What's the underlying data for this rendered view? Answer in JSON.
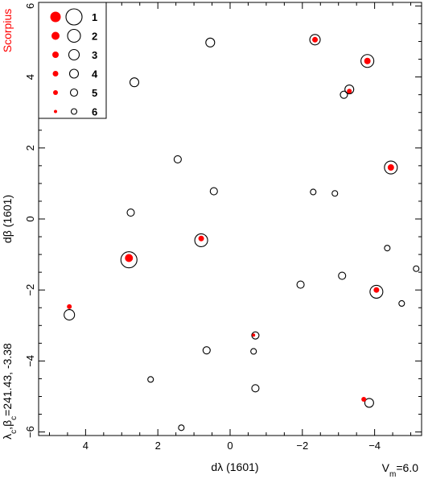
{
  "chart_data": {
    "type": "scatter",
    "constellation": "Scorpius",
    "xlabel": "dλ  (1601)",
    "ylabel": "dβ  (1601)",
    "center_label": "λc,βc=241.43, -3.38",
    "magnitude_label": "Vm=6.0",
    "xlim": [
      5.3,
      -5.3
    ],
    "ylim": [
      -6.1,
      6.1
    ],
    "x_ticks": [
      4,
      2,
      0,
      -2,
      -4
    ],
    "y_ticks": [
      -6,
      -4,
      -2,
      0,
      2,
      4,
      6
    ],
    "legend": {
      "position": "top-left",
      "magnitudes": [
        "1",
        "2",
        "3",
        "4",
        "5",
        "6"
      ]
    },
    "colors": {
      "filled": "#ff0000",
      "open": "#000000",
      "constellation": "#ff0000"
    },
    "open_circles": [
      {
        "x": 0.55,
        "y": 4.97,
        "mag": 4
      },
      {
        "x": 2.65,
        "y": 3.85,
        "mag": 4
      },
      {
        "x": -2.35,
        "y": 5.05,
        "mag": 3
      },
      {
        "x": -3.8,
        "y": 4.45,
        "mag": 2
      },
      {
        "x": -3.3,
        "y": 3.65,
        "mag": 4
      },
      {
        "x": -3.15,
        "y": 3.5,
        "mag": 5
      },
      {
        "x": 1.45,
        "y": 1.68,
        "mag": 5
      },
      {
        "x": 0.45,
        "y": 0.78,
        "mag": 5
      },
      {
        "x": -2.3,
        "y": 0.76,
        "mag": 6
      },
      {
        "x": -2.9,
        "y": 0.72,
        "mag": 6
      },
      {
        "x": -4.45,
        "y": 1.45,
        "mag": 2
      },
      {
        "x": 2.75,
        "y": 0.18,
        "mag": 5
      },
      {
        "x": 0.8,
        "y": -0.6,
        "mag": 2
      },
      {
        "x": 2.8,
        "y": -1.15,
        "mag": 1
      },
      {
        "x": -4.35,
        "y": -0.82,
        "mag": 6
      },
      {
        "x": -5.15,
        "y": -1.4,
        "mag": 6
      },
      {
        "x": -3.1,
        "y": -1.6,
        "mag": 5
      },
      {
        "x": -1.95,
        "y": -1.85,
        "mag": 5
      },
      {
        "x": -4.05,
        "y": -2.05,
        "mag": 2
      },
      {
        "x": -4.75,
        "y": -2.38,
        "mag": 6
      },
      {
        "x": 4.45,
        "y": -2.7,
        "mag": 3
      },
      {
        "x": -0.7,
        "y": -3.28,
        "mag": 5
      },
      {
        "x": 0.65,
        "y": -3.7,
        "mag": 5
      },
      {
        "x": -0.65,
        "y": -3.73,
        "mag": 6
      },
      {
        "x": 2.2,
        "y": -4.52,
        "mag": 6
      },
      {
        "x": -0.7,
        "y": -4.77,
        "mag": 5
      },
      {
        "x": -3.85,
        "y": -5.18,
        "mag": 4
      },
      {
        "x": 1.35,
        "y": -5.88,
        "mag": 6
      }
    ],
    "filled_circles": [
      {
        "x": -2.35,
        "y": 5.05,
        "mag": 4
      },
      {
        "x": -3.8,
        "y": 4.45,
        "mag": 3
      },
      {
        "x": -3.3,
        "y": 3.6,
        "mag": 5
      },
      {
        "x": -4.45,
        "y": 1.45,
        "mag": 3
      },
      {
        "x": 0.8,
        "y": -0.55,
        "mag": 4
      },
      {
        "x": 2.8,
        "y": -1.1,
        "mag": 2
      },
      {
        "x": -4.05,
        "y": -2.0,
        "mag": 4
      },
      {
        "x": 4.45,
        "y": -2.47,
        "mag": 5
      },
      {
        "x": -0.65,
        "y": -3.27,
        "mag": 6
      },
      {
        "x": -3.7,
        "y": -5.08,
        "mag": 5
      }
    ]
  }
}
